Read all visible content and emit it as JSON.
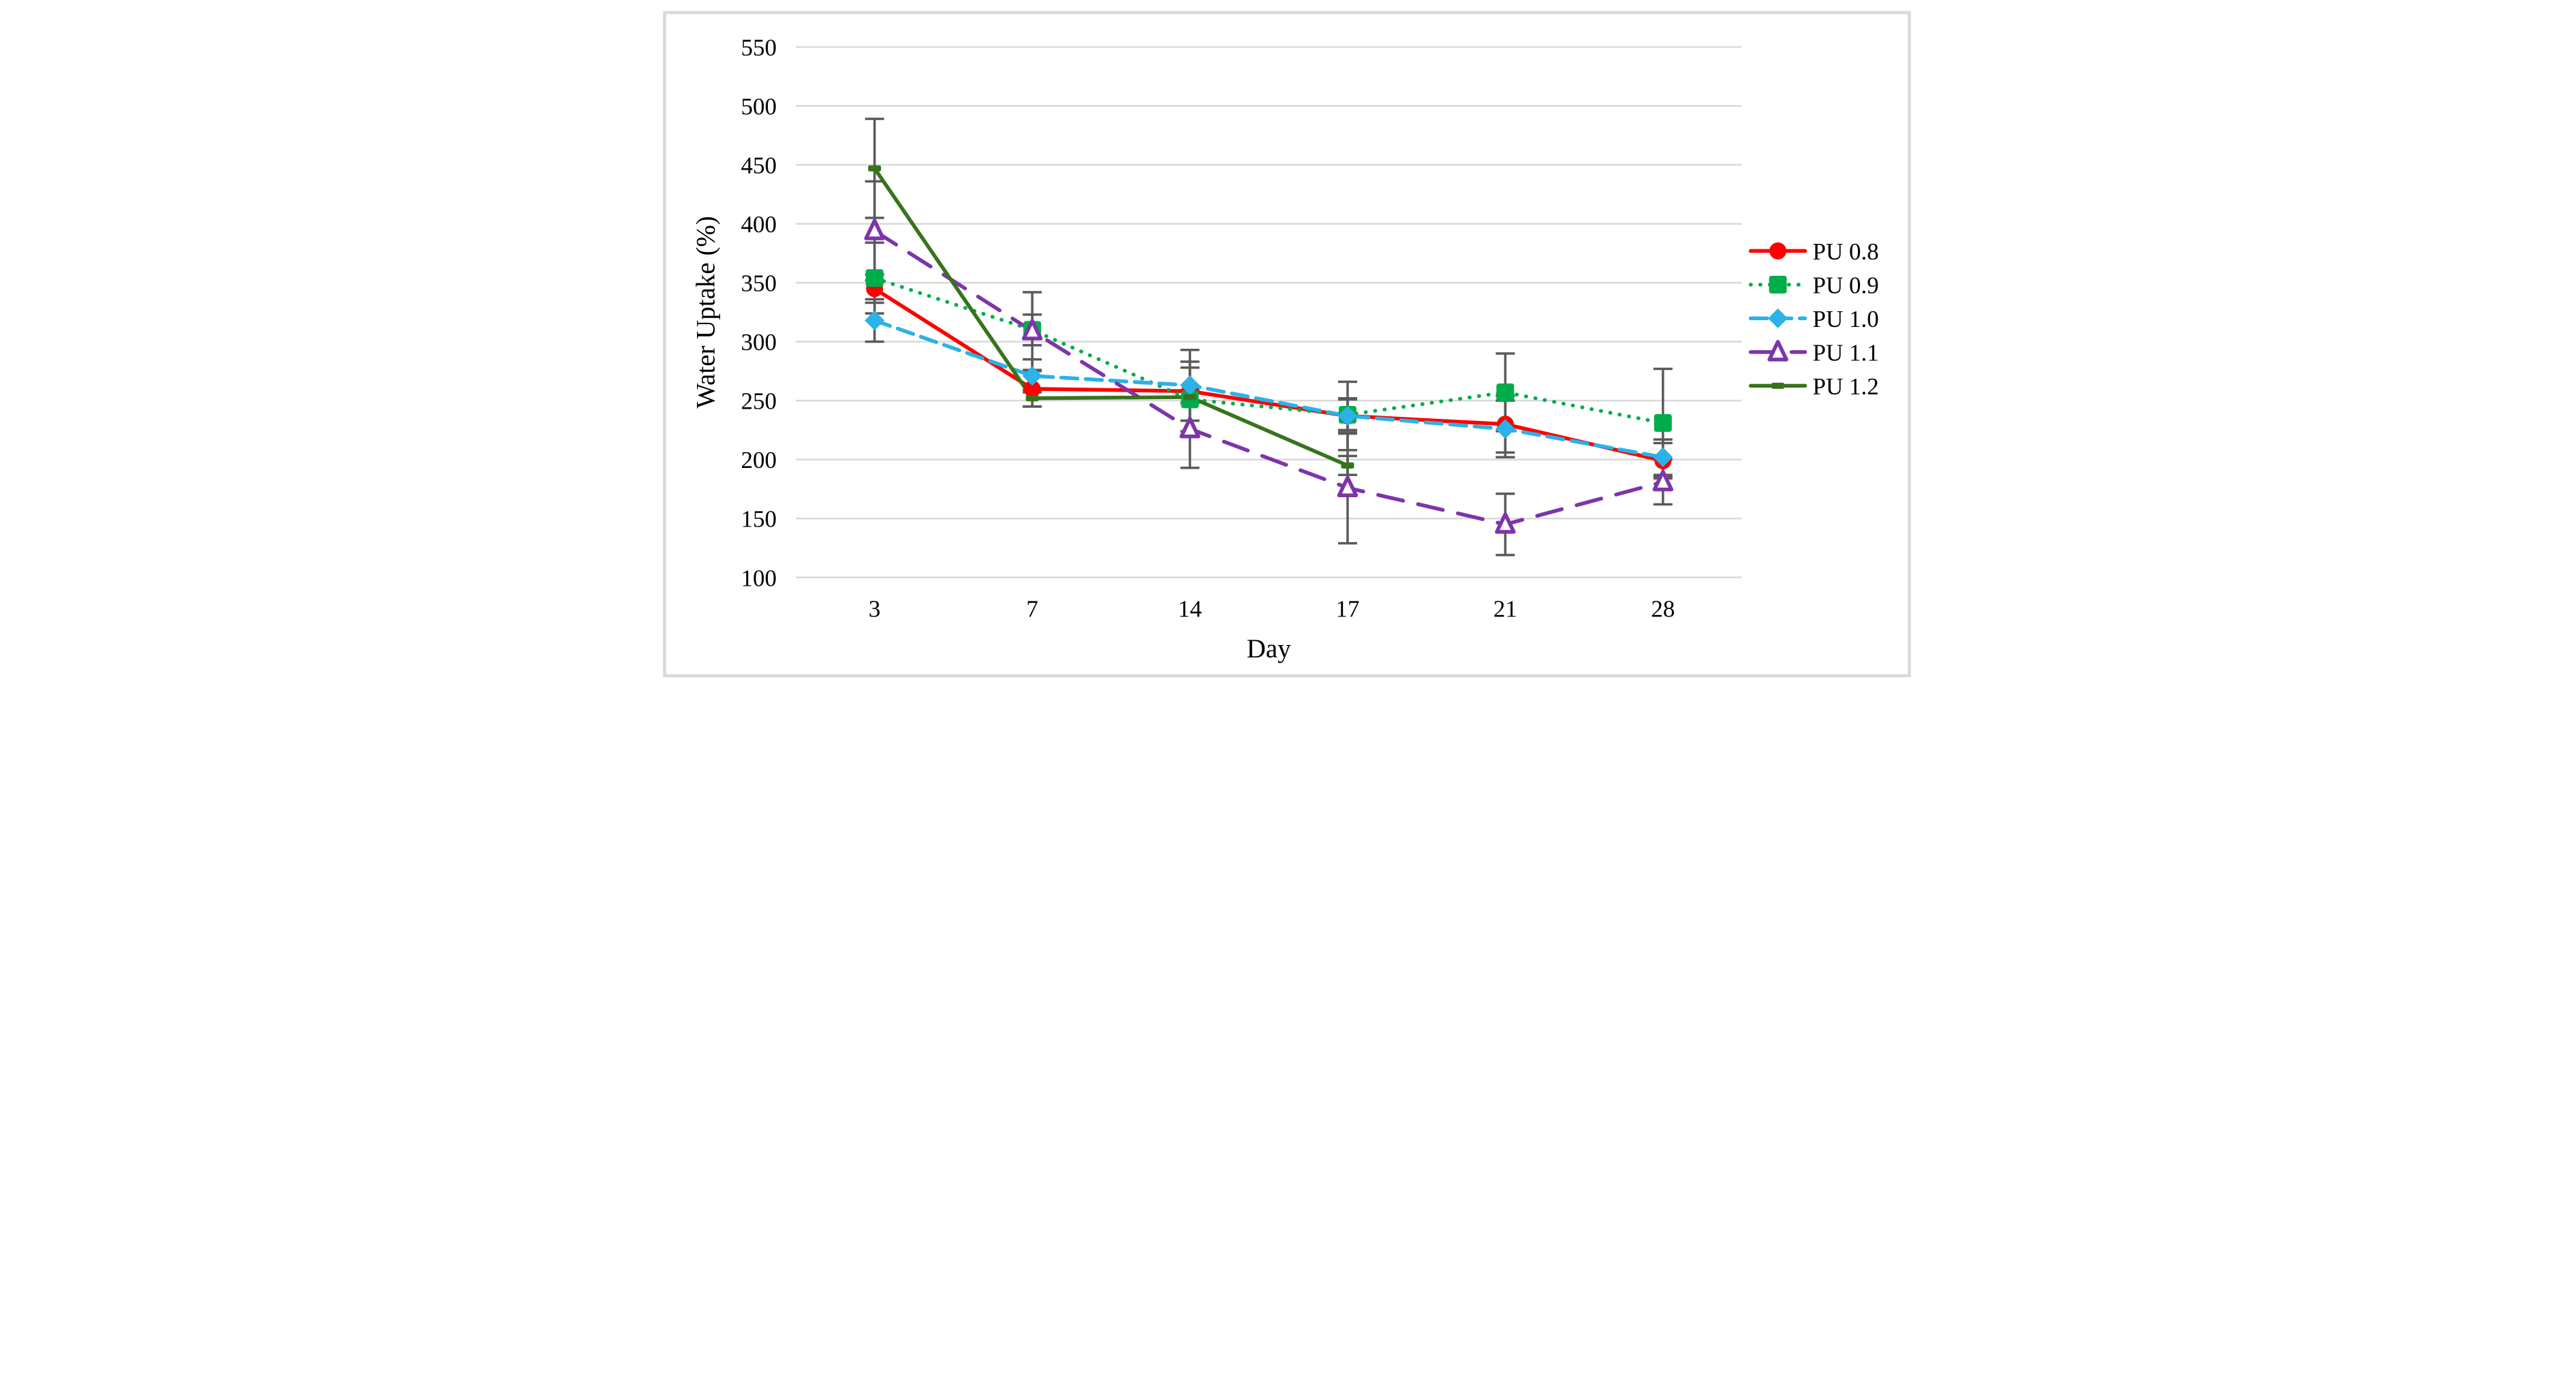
{
  "figure": {
    "background": "#ffffff",
    "frame_border_color": "#d9d9d9",
    "gridline_color": "#d9d9d9",
    "error_bar_color": "#5a5a5a"
  },
  "chart_data": {
    "type": "line",
    "title": "",
    "xlabel": "Day",
    "ylabel": "Water Uptake (%)",
    "x_axis_type": "category",
    "categories": [
      3,
      7,
      14,
      17,
      21,
      28
    ],
    "x_tick_labels": [
      "3",
      "7",
      "14",
      "17",
      "21",
      "28"
    ],
    "y_ticks": [
      100,
      150,
      200,
      250,
      300,
      350,
      400,
      450,
      500,
      550
    ],
    "ylim": [
      100,
      550
    ],
    "grid": "horizontal",
    "legend_position": "right",
    "series": [
      {
        "name": "PU 0.8",
        "color": "#ff0000",
        "line_style": "solid",
        "marker": "circle",
        "marker_fill": "filled",
        "values": [
          345,
          260,
          258,
          237,
          230,
          199
        ],
        "errors": [
          12,
          15,
          25,
          15,
          24,
          15
        ]
      },
      {
        "name": "PU 0.9",
        "color": "#00ad4b",
        "line_style": "dotted",
        "marker": "square",
        "marker_fill": "filled",
        "values": [
          354,
          310,
          251,
          238,
          257,
          231
        ],
        "errors": [
          30,
          13,
          27,
          13,
          33,
          46
        ]
      },
      {
        "name": "PU 1.0",
        "color": "#2cb1e8",
        "line_style": "dashed",
        "marker": "diamond",
        "marker_fill": "filled",
        "values": [
          318,
          271,
          263,
          237,
          226,
          202
        ],
        "errors": [
          18,
          14,
          30,
          29,
          24,
          15
        ]
      },
      {
        "name": "PU 1.1",
        "color": "#7d35aa",
        "line_style": "long-dash",
        "marker": "triangle-open",
        "marker_fill": "open",
        "values": [
          394,
          309,
          226,
          176,
          145,
          181
        ],
        "errors": [
          42,
          33,
          33,
          47,
          26,
          19
        ]
      },
      {
        "name": "PU 1.2",
        "color": "#37731c",
        "line_style": "solid",
        "marker": "dash",
        "marker_fill": "filled",
        "values": [
          447,
          252,
          253,
          195,
          null,
          null
        ],
        "errors": [
          42,
          7,
          5,
          8,
          null,
          null
        ]
      }
    ]
  }
}
